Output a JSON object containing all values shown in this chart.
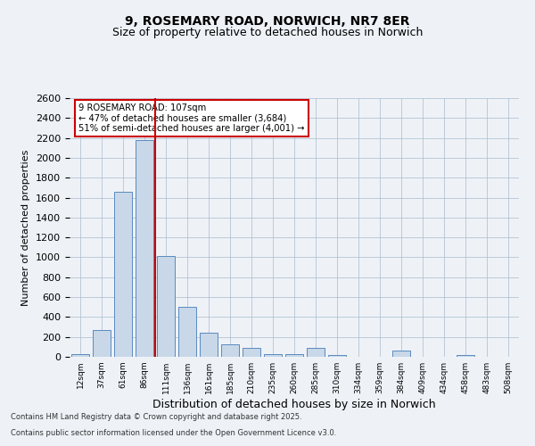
{
  "title1": "9, ROSEMARY ROAD, NORWICH, NR7 8ER",
  "title2": "Size of property relative to detached houses in Norwich",
  "xlabel": "Distribution of detached houses by size in Norwich",
  "ylabel": "Number of detached properties",
  "categories": [
    "12sqm",
    "37sqm",
    "61sqm",
    "86sqm",
    "111sqm",
    "136sqm",
    "161sqm",
    "185sqm",
    "210sqm",
    "235sqm",
    "260sqm",
    "285sqm",
    "310sqm",
    "334sqm",
    "359sqm",
    "384sqm",
    "409sqm",
    "434sqm",
    "458sqm",
    "483sqm",
    "508sqm"
  ],
  "values": [
    25,
    270,
    1660,
    2180,
    1010,
    500,
    240,
    130,
    90,
    30,
    30,
    90,
    20,
    0,
    0,
    60,
    0,
    0,
    20,
    0,
    0
  ],
  "bar_color": "#c8d8e8",
  "bar_edge_color": "#5a8abf",
  "property_line_color": "#cc0000",
  "property_line_x": 3.5,
  "annotation_text": "9 ROSEMARY ROAD: 107sqm\n← 47% of detached houses are smaller (3,684)\n51% of semi-detached houses are larger (4,001) →",
  "annotation_box_color": "#cc0000",
  "ylim": [
    0,
    2600
  ],
  "yticks": [
    0,
    200,
    400,
    600,
    800,
    1000,
    1200,
    1400,
    1600,
    1800,
    2000,
    2200,
    2400,
    2600
  ],
  "footer1": "Contains HM Land Registry data © Crown copyright and database right 2025.",
  "footer2": "Contains public sector information licensed under the Open Government Licence v3.0.",
  "bg_color": "#eef2f7",
  "plot_bg_color": "#eef2f7",
  "grid_color": "#aabbcc"
}
